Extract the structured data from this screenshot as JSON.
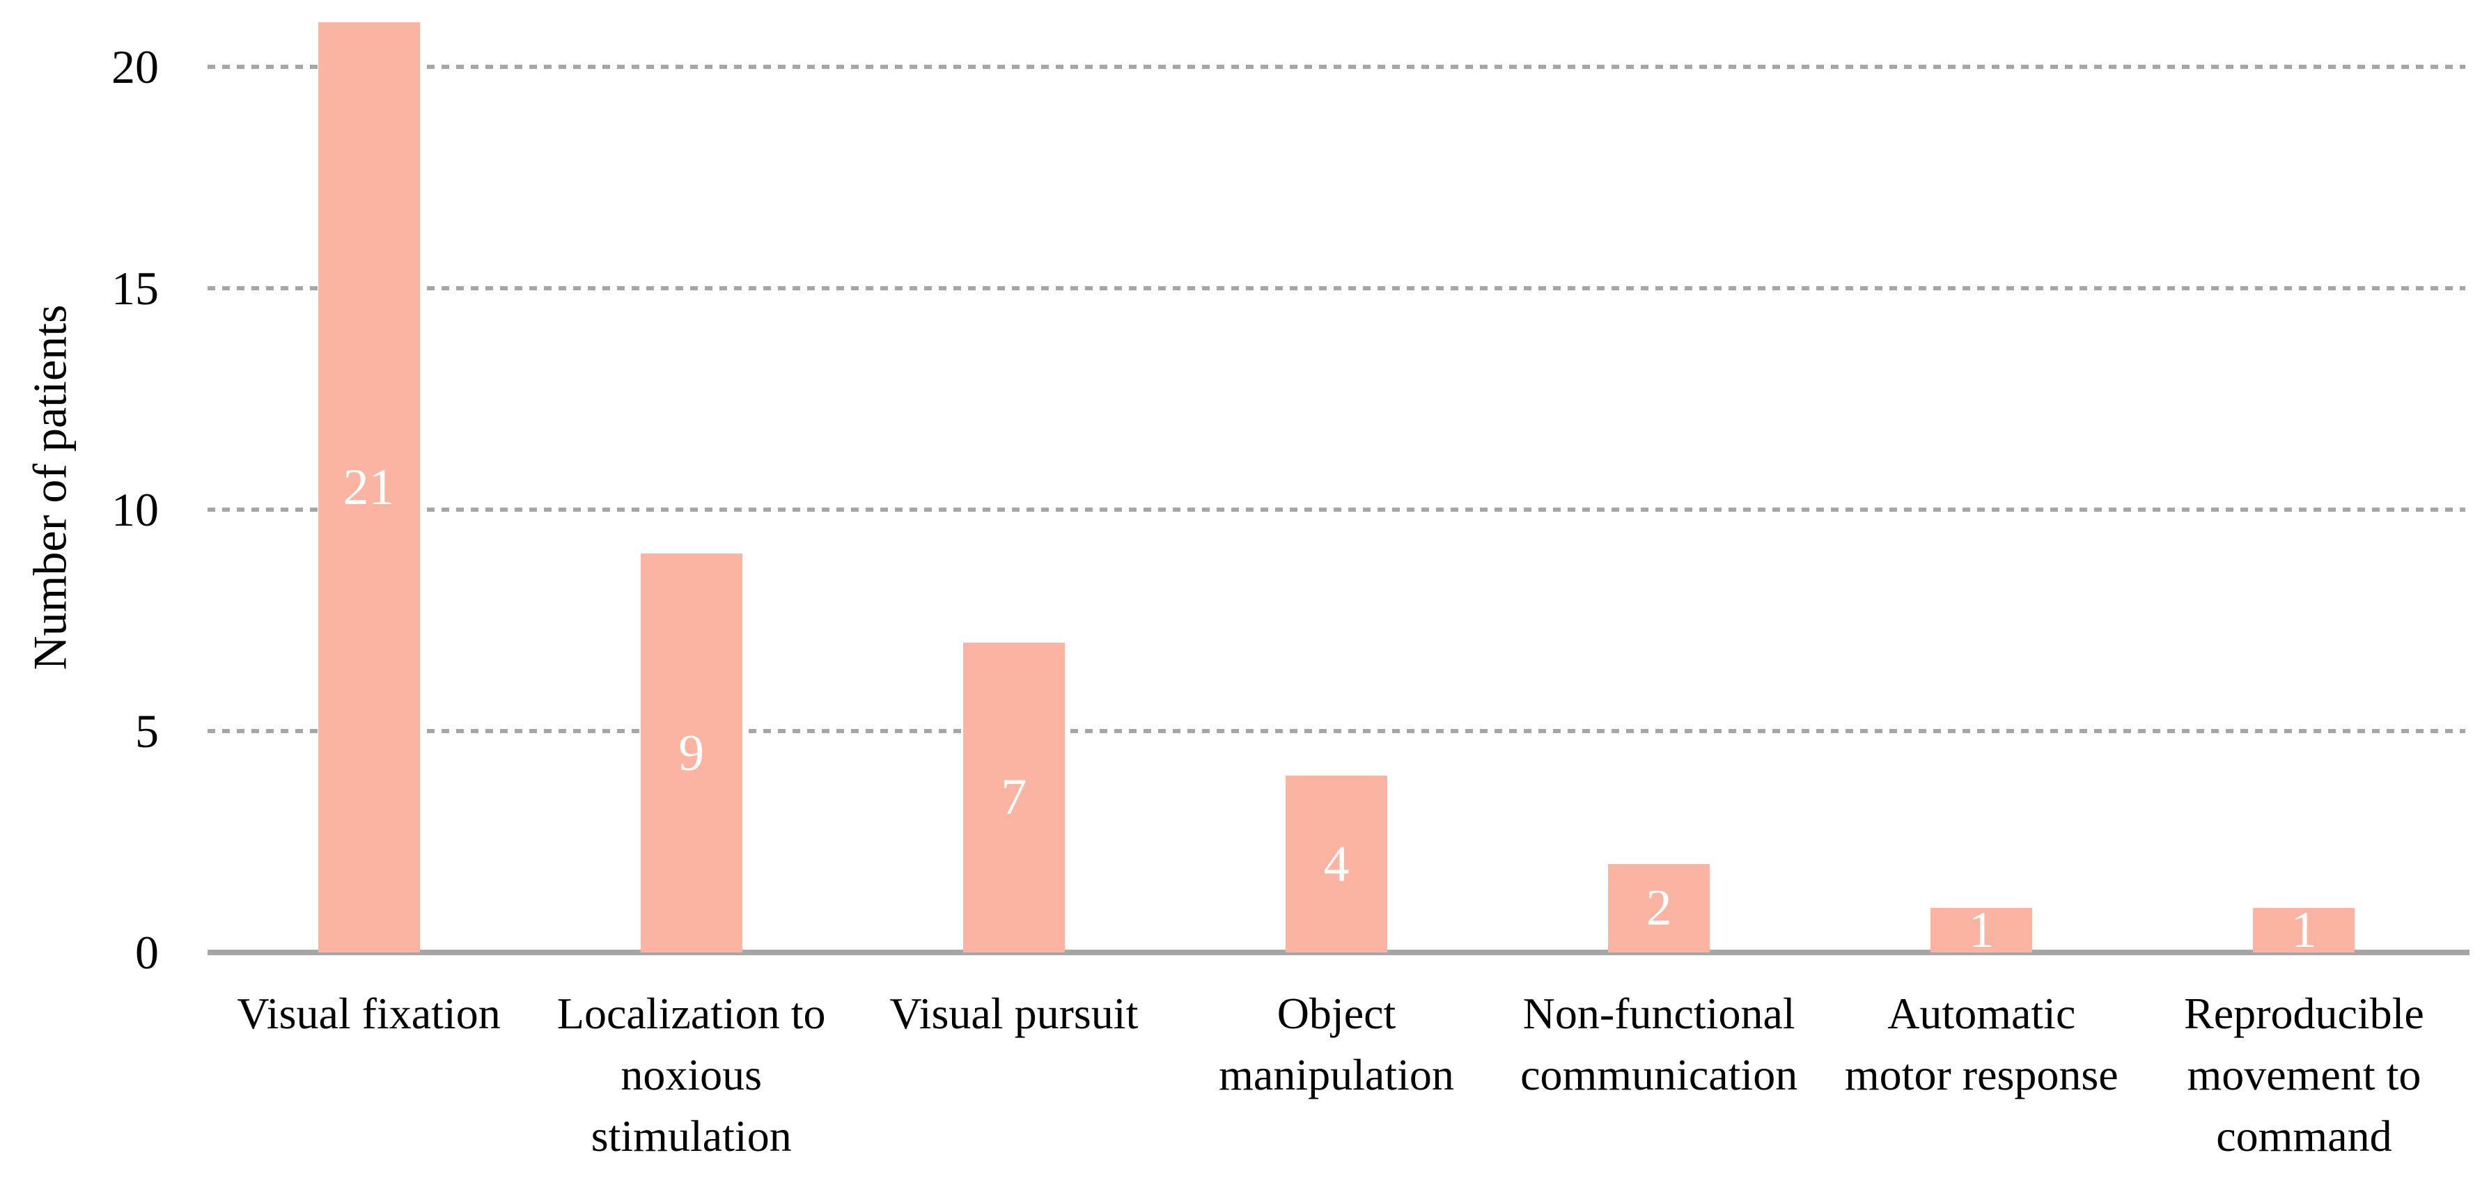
{
  "chart_data": {
    "type": "bar",
    "title": "",
    "ylabel": "Number of patients",
    "xlabel": "",
    "categories": [
      "Visual fixation",
      "Localization to\nnoxious\nstimulation",
      "Visual pursuit",
      "Object\nmanipulation",
      "Non-functional\ncommunication",
      "Automatic\nmotor response",
      "Reproducible\nmovement to\ncommand"
    ],
    "values": [
      21,
      9,
      7,
      4,
      2,
      1,
      1
    ],
    "yticks": [
      0,
      5,
      10,
      15,
      20
    ],
    "ylim": [
      0,
      21
    ],
    "grid": "horizontal-dashed",
    "legend": "none",
    "bar_labels_position": "inside-center",
    "colors": {
      "bar": "#FBB4A2",
      "grid": "#A6A6A6",
      "axis": "#A6A6A6",
      "bar_label": "#FFFFFF",
      "text": "#000000",
      "background": "#FFFFFF"
    }
  }
}
